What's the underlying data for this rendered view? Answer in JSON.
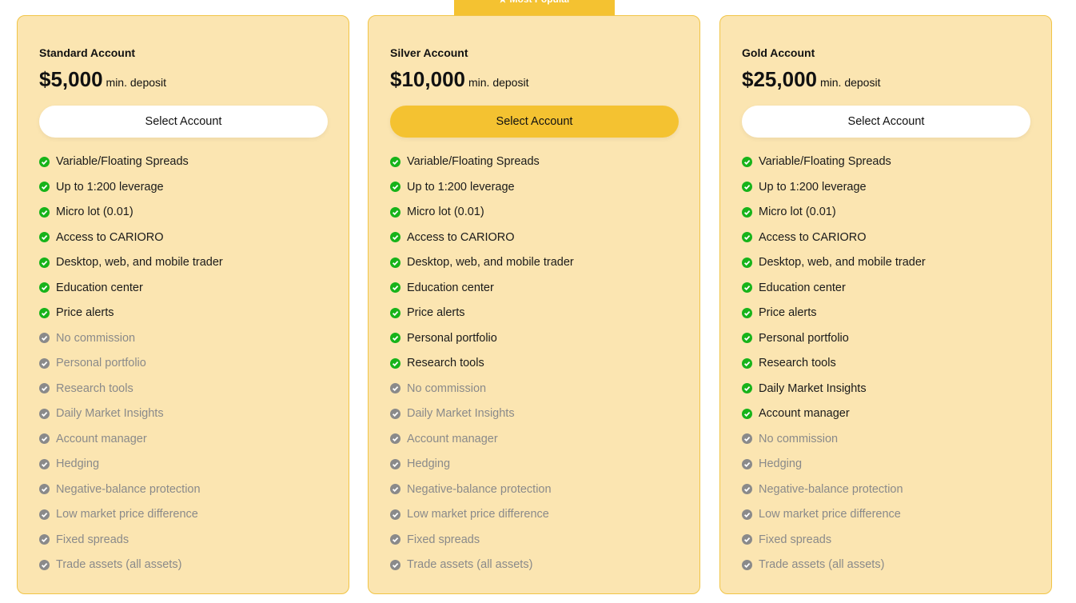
{
  "badge": "★ Most Popular",
  "plans": [
    {
      "name": "Standard Account",
      "price": "$5,000",
      "deposit_label": "min. deposit",
      "button": "Select Account",
      "featured": false,
      "features": [
        {
          "text": "Variable/Floating Spreads",
          "included": true
        },
        {
          "text": "Up to 1:200 leverage",
          "included": true
        },
        {
          "text": "Micro lot (0.01)",
          "included": true
        },
        {
          "text": "Access to CARIORO",
          "included": true
        },
        {
          "text": "Desktop, web, and mobile trader",
          "included": true
        },
        {
          "text": "Education center",
          "included": true
        },
        {
          "text": "Price alerts",
          "included": true
        },
        {
          "text": "No commission",
          "included": false
        },
        {
          "text": "Personal portfolio",
          "included": false
        },
        {
          "text": "Research tools",
          "included": false
        },
        {
          "text": "Daily Market Insights",
          "included": false
        },
        {
          "text": "Account manager",
          "included": false
        },
        {
          "text": "Hedging",
          "included": false
        },
        {
          "text": "Negative-balance protection",
          "included": false
        },
        {
          "text": "Low market price difference",
          "included": false
        },
        {
          "text": "Fixed spreads",
          "included": false
        },
        {
          "text": "Trade assets (all assets)",
          "included": false
        }
      ]
    },
    {
      "name": "Silver Account",
      "price": "$10,000",
      "deposit_label": "min. deposit",
      "button": "Select Account",
      "featured": true,
      "features": [
        {
          "text": "Variable/Floating Spreads",
          "included": true
        },
        {
          "text": "Up to 1:200 leverage",
          "included": true
        },
        {
          "text": "Micro lot (0.01)",
          "included": true
        },
        {
          "text": "Access to CARIORO",
          "included": true
        },
        {
          "text": "Desktop, web, and mobile trader",
          "included": true
        },
        {
          "text": "Education center",
          "included": true
        },
        {
          "text": "Price alerts",
          "included": true
        },
        {
          "text": "Personal portfolio",
          "included": true
        },
        {
          "text": "Research tools",
          "included": true
        },
        {
          "text": "No commission",
          "included": false
        },
        {
          "text": "Daily Market Insights",
          "included": false
        },
        {
          "text": "Account manager",
          "included": false
        },
        {
          "text": "Hedging",
          "included": false
        },
        {
          "text": "Negative-balance protection",
          "included": false
        },
        {
          "text": "Low market price difference",
          "included": false
        },
        {
          "text": "Fixed spreads",
          "included": false
        },
        {
          "text": "Trade assets (all assets)",
          "included": false
        }
      ]
    },
    {
      "name": "Gold Account",
      "price": "$25,000",
      "deposit_label": "min. deposit",
      "button": "Select Account",
      "featured": false,
      "features": [
        {
          "text": "Variable/Floating Spreads",
          "included": true
        },
        {
          "text": "Up to 1:200 leverage",
          "included": true
        },
        {
          "text": "Micro lot (0.01)",
          "included": true
        },
        {
          "text": "Access to CARIORO",
          "included": true
        },
        {
          "text": "Desktop, web, and mobile trader",
          "included": true
        },
        {
          "text": "Education center",
          "included": true
        },
        {
          "text": "Price alerts",
          "included": true
        },
        {
          "text": "Personal portfolio",
          "included": true
        },
        {
          "text": "Research tools",
          "included": true
        },
        {
          "text": "Daily Market Insights",
          "included": true
        },
        {
          "text": "Account manager",
          "included": true
        },
        {
          "text": "No commission",
          "included": false
        },
        {
          "text": "Hedging",
          "included": false
        },
        {
          "text": "Negative-balance protection",
          "included": false
        },
        {
          "text": "Low market price difference",
          "included": false
        },
        {
          "text": "Fixed spreads",
          "included": false
        },
        {
          "text": "Trade assets (all assets)",
          "included": false
        }
      ]
    }
  ]
}
